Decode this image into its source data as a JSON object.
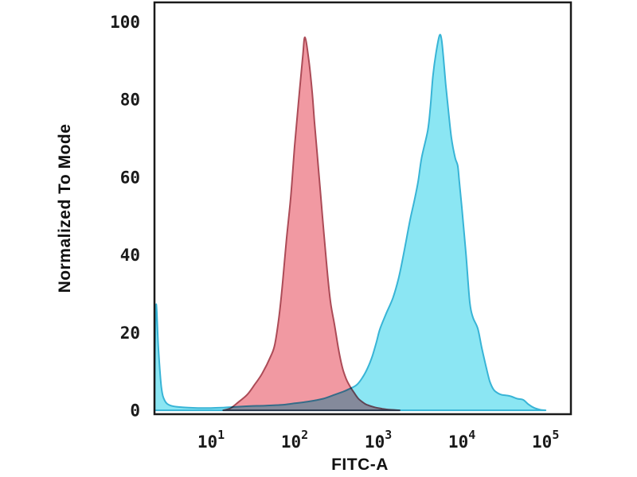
{
  "figure": {
    "background": "#ffffff",
    "frame_color": "#1a1a1a",
    "text_color": "#1a1a1a"
  },
  "chart_data": {
    "type": "area",
    "variant": "flow-cytometry-histogram-overlay",
    "title": "",
    "xlabel": "FITC-A",
    "ylabel": "Normalized To Mode",
    "x_scale": "log",
    "xlim": [
      2.11,
      201000
    ],
    "ylim": [
      -1,
      105
    ],
    "grid": false,
    "legend": "none",
    "yticks": [
      0,
      20,
      40,
      60,
      80,
      100
    ],
    "xticks": [
      {
        "label": "10",
        "exp": "1",
        "value": 10
      },
      {
        "label": "10",
        "exp": "2",
        "value": 100
      },
      {
        "label": "10",
        "exp": "3",
        "value": 1000
      },
      {
        "label": "10",
        "exp": "4",
        "value": 10000
      },
      {
        "label": "10",
        "exp": "5",
        "value": 100000
      }
    ],
    "series": [
      {
        "name": "red-filled-histogram",
        "fill": "#EF8E98",
        "fill_opacity": 0.9,
        "stroke": "#AC4B57",
        "stroke_width": 2,
        "blend": "normal",
        "points": [
          [
            14,
            0
          ],
          [
            17,
            0.5
          ],
          [
            21,
            2
          ],
          [
            27,
            4
          ],
          [
            33,
            6.5
          ],
          [
            41,
            9.5
          ],
          [
            52,
            14
          ],
          [
            58,
            17
          ],
          [
            65,
            24
          ],
          [
            72,
            33
          ],
          [
            80,
            44
          ],
          [
            90,
            55
          ],
          [
            100,
            68
          ],
          [
            112,
            80
          ],
          [
            125,
            91
          ],
          [
            133,
            96
          ],
          [
            148,
            90
          ],
          [
            162,
            82
          ],
          [
            173,
            74
          ],
          [
            193,
            62
          ],
          [
            215,
            50
          ],
          [
            240,
            38
          ],
          [
            268,
            28
          ],
          [
            300,
            22
          ],
          [
            333,
            16
          ],
          [
            372,
            11
          ],
          [
            415,
            8
          ],
          [
            464,
            6
          ],
          [
            515,
            4.5
          ],
          [
            578,
            3
          ],
          [
            641,
            2.2
          ],
          [
            719,
            1.5
          ],
          [
            896,
            0.8
          ],
          [
            1120,
            0.4
          ],
          [
            1390,
            0.15
          ],
          [
            1800,
            0
          ]
        ]
      },
      {
        "name": "cyan-filled-histogram",
        "fill": "#4DD9EC",
        "fill_opacity": 0.65,
        "stroke": "#38B4D6",
        "stroke_width": 2,
        "blend": "multiply",
        "points": [
          [
            2.11,
            3
          ],
          [
            2.2,
            27
          ],
          [
            2.35,
            16
          ],
          [
            2.55,
            6
          ],
          [
            2.8,
            2.5
          ],
          [
            3.3,
            1.2
          ],
          [
            4.5,
            0.8
          ],
          [
            7,
            0.6
          ],
          [
            10,
            0.6
          ],
          [
            14,
            0.7
          ],
          [
            20,
            0.9
          ],
          [
            30,
            1.1
          ],
          [
            45,
            1.2
          ],
          [
            70,
            1.4
          ],
          [
            100,
            1.8
          ],
          [
            150,
            2.3
          ],
          [
            220,
            3
          ],
          [
            300,
            4
          ],
          [
            380,
            4.8
          ],
          [
            430,
            5.3
          ],
          [
            550,
            6.5
          ],
          [
            650,
            8.5
          ],
          [
            750,
            11
          ],
          [
            850,
            14
          ],
          [
            950,
            17.5
          ],
          [
            1050,
            21
          ],
          [
            1250,
            25
          ],
          [
            1500,
            29
          ],
          [
            1750,
            34
          ],
          [
            2000,
            40
          ],
          [
            2400,
            49
          ],
          [
            2700,
            54
          ],
          [
            3000,
            59
          ],
          [
            3300,
            65
          ],
          [
            3900,
            72
          ],
          [
            4200,
            78
          ],
          [
            4500,
            86
          ],
          [
            4900,
            92
          ],
          [
            5400,
            96.5
          ],
          [
            5700,
            95.5
          ],
          [
            6000,
            91
          ],
          [
            6400,
            84
          ],
          [
            6900,
            77
          ],
          [
            7500,
            70
          ],
          [
            8300,
            65
          ],
          [
            8900,
            63
          ],
          [
            9300,
            59
          ],
          [
            10000,
            52
          ],
          [
            11200,
            40
          ],
          [
            12400,
            28
          ],
          [
            13500,
            24
          ],
          [
            15500,
            21
          ],
          [
            17300,
            16
          ],
          [
            19300,
            11.5
          ],
          [
            21500,
            7.5
          ],
          [
            24000,
            5.3
          ],
          [
            27000,
            4.4
          ],
          [
            30000,
            4
          ],
          [
            37000,
            3.7
          ],
          [
            46000,
            3
          ],
          [
            54000,
            2.7
          ],
          [
            62000,
            1.6
          ],
          [
            72000,
            0.7
          ],
          [
            86000,
            0.15
          ],
          [
            100000,
            0
          ]
        ]
      }
    ]
  }
}
